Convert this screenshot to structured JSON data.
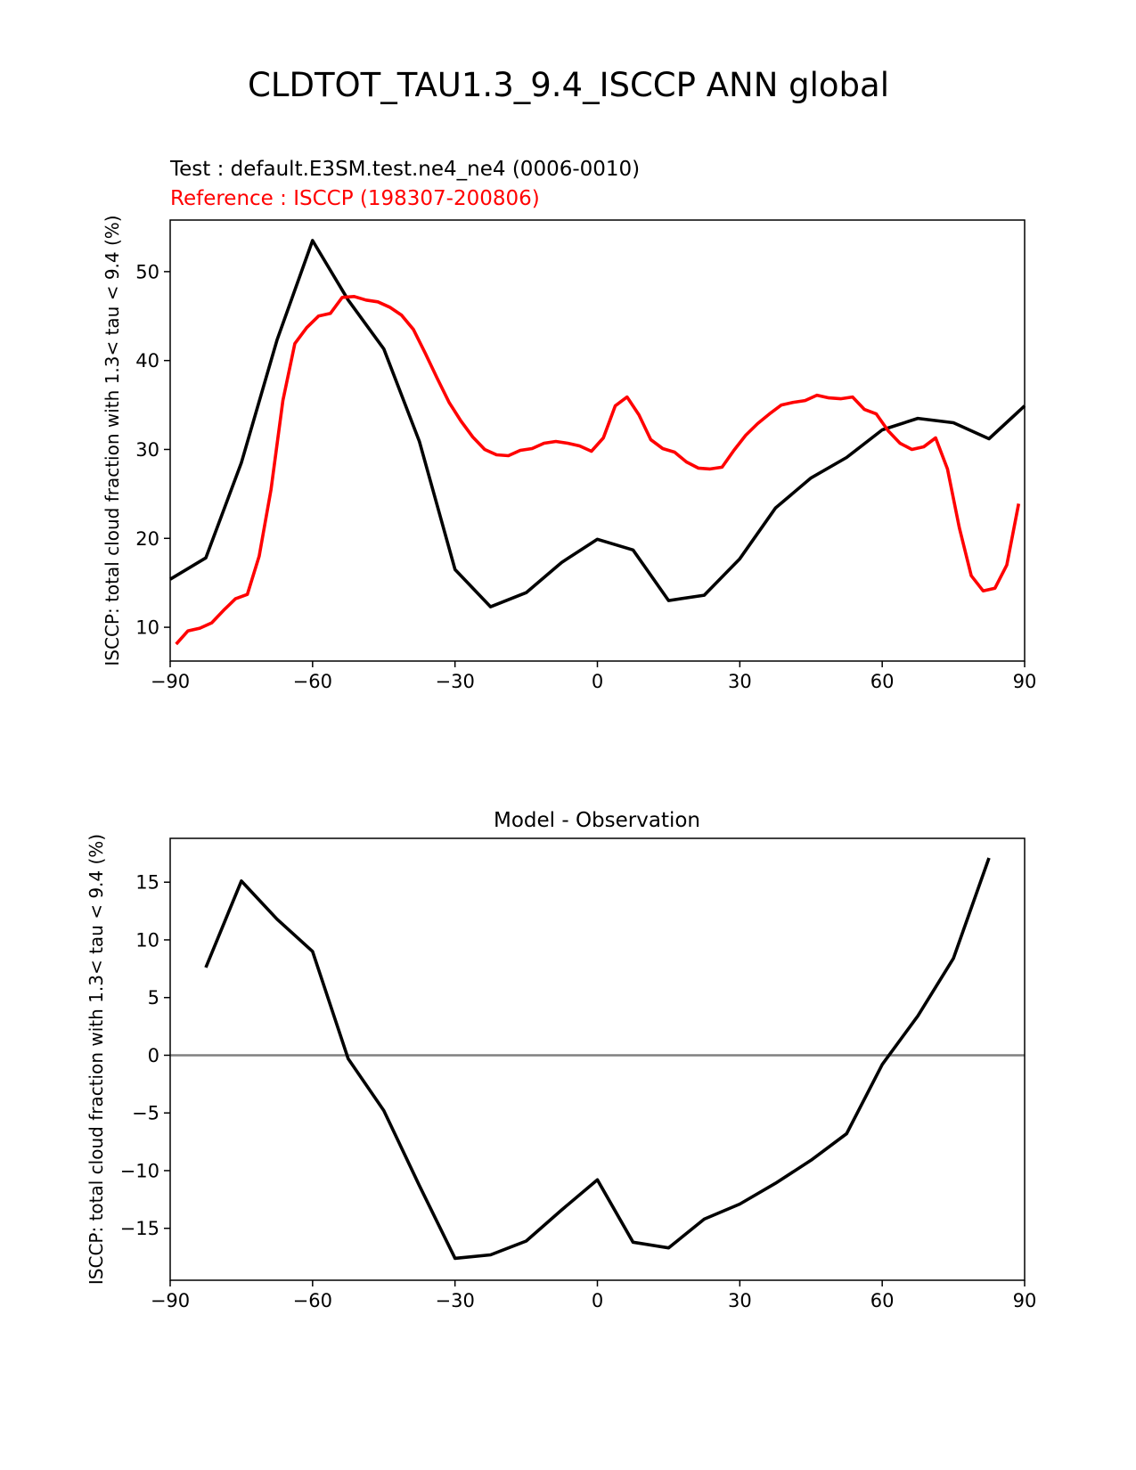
{
  "figure": {
    "title": "CLDTOT_TAU1.3_9.4_ISCCP ANN global",
    "test_label": "Test : default.E3SM.test.ne4_ne4 (0006-0010)",
    "reference_label": "Reference : ISCCP (198307-200806)"
  },
  "colors": {
    "test": "#000000",
    "reference": "#ff0000",
    "zero_line": "#808080",
    "axes": "#000000"
  },
  "chart_data": [
    {
      "type": "line",
      "title": "",
      "xlabel": "",
      "ylabel": "ISCCP: total cloud fraction with 1.3< tau < 9.4 (%)",
      "xlim": [
        -90,
        90
      ],
      "ylim": [
        6.2,
        55.8
      ],
      "xticks": [
        -90,
        -60,
        -30,
        0,
        30,
        60,
        90
      ],
      "xtick_labels": [
        "−90",
        "−60",
        "−30",
        "0",
        "30",
        "60",
        "90"
      ],
      "yticks": [
        10,
        20,
        30,
        40,
        50
      ],
      "ytick_labels": [
        "10",
        "20",
        "30",
        "40",
        "50"
      ],
      "series": [
        {
          "name": "Test : default.E3SM.test.ne4_ne4 (0006-0010)",
          "color_key": "test",
          "x": [
            -90,
            -82.5,
            -75,
            -67.5,
            -60,
            -52.5,
            -45,
            -37.5,
            -30,
            -22.5,
            -15,
            -7.5,
            0,
            7.5,
            15,
            22.5,
            30,
            37.5,
            45,
            52.5,
            60,
            67.5,
            75,
            82.5,
            90
          ],
          "y": [
            15.4,
            17.8,
            28.5,
            42.3,
            53.5,
            46.8,
            41.3,
            30.9,
            16.5,
            12.3,
            13.9,
            17.3,
            19.9,
            18.7,
            13.0,
            13.6,
            17.7,
            23.4,
            26.8,
            29.1,
            32.2,
            33.5,
            33.0,
            31.2,
            34.9
          ]
        },
        {
          "name": "Reference : ISCCP (198307-200806)",
          "color_key": "reference",
          "x": [
            -88.75,
            -86.25,
            -83.75,
            -81.25,
            -78.75,
            -76.25,
            -73.75,
            -71.25,
            -68.75,
            -66.25,
            -63.75,
            -61.25,
            -58.75,
            -56.25,
            -53.75,
            -51.25,
            -48.75,
            -46.25,
            -43.75,
            -41.25,
            -38.75,
            -36.25,
            -33.75,
            -31.25,
            -28.75,
            -26.25,
            -23.75,
            -21.25,
            -18.75,
            -16.25,
            -13.75,
            -11.25,
            -8.75,
            -6.25,
            -3.75,
            -1.25,
            1.25,
            3.75,
            6.25,
            8.75,
            11.25,
            13.75,
            16.25,
            18.75,
            21.25,
            23.75,
            26.25,
            28.75,
            31.25,
            33.75,
            36.25,
            38.75,
            41.25,
            43.75,
            46.25,
            48.75,
            51.25,
            53.75,
            56.25,
            58.75,
            61.25,
            63.75,
            66.25,
            68.75,
            71.25,
            73.75,
            76.25,
            78.75,
            81.25,
            83.75,
            86.25,
            88.75
          ],
          "y": [
            8.1,
            9.6,
            9.9,
            10.5,
            11.9,
            13.2,
            13.7,
            18.0,
            25.5,
            35.5,
            41.9,
            43.7,
            45.0,
            45.3,
            47.1,
            47.2,
            46.8,
            46.6,
            46.0,
            45.1,
            43.5,
            40.8,
            38.0,
            35.3,
            33.2,
            31.4,
            30.0,
            29.4,
            29.3,
            29.9,
            30.1,
            30.7,
            30.9,
            30.7,
            30.4,
            29.8,
            31.3,
            34.9,
            35.9,
            33.9,
            31.1,
            30.1,
            29.7,
            28.6,
            27.9,
            27.8,
            28.0,
            29.9,
            31.6,
            32.9,
            34.0,
            35.0,
            35.3,
            35.5,
            36.1,
            35.8,
            35.7,
            35.9,
            34.5,
            34.0,
            32.1,
            30.7,
            30.0,
            30.3,
            31.3,
            27.8,
            21.2,
            15.8,
            14.1,
            14.4,
            17.0,
            23.9
          ]
        }
      ]
    },
    {
      "type": "line",
      "title": "Model - Observation",
      "xlabel": "",
      "ylabel": "ISCCP: total cloud fraction with 1.3< tau < 9.4 (%)",
      "xlim": [
        -90,
        90
      ],
      "ylim": [
        -19.5,
        18.8
      ],
      "xticks": [
        -90,
        -60,
        -30,
        0,
        30,
        60,
        90
      ],
      "xtick_labels": [
        "−90",
        "−60",
        "−30",
        "0",
        "30",
        "60",
        "90"
      ],
      "yticks": [
        -15,
        -10,
        -5,
        0,
        5,
        10,
        15
      ],
      "ytick_labels": [
        "−15",
        "−10",
        "−5",
        "0",
        "5",
        "10",
        "15"
      ],
      "zero_line": 0,
      "series": [
        {
          "name": "Model - Observation",
          "color_key": "test",
          "x": [
            -82.5,
            -75,
            -67.5,
            -60,
            -52.5,
            -45,
            -37.5,
            -30,
            -22.5,
            -15,
            -7.5,
            0,
            7.5,
            15,
            22.5,
            30,
            37.5,
            45,
            52.5,
            60,
            67.5,
            75,
            82.5
          ],
          "y": [
            7.6,
            15.1,
            11.8,
            9.0,
            -0.3,
            -4.8,
            -11.3,
            -17.6,
            -17.3,
            -16.1,
            -13.4,
            -10.8,
            -16.2,
            -16.7,
            -14.2,
            -12.9,
            -11.1,
            -9.1,
            -6.8,
            -0.8,
            3.4,
            8.4,
            17.1
          ]
        }
      ]
    }
  ]
}
